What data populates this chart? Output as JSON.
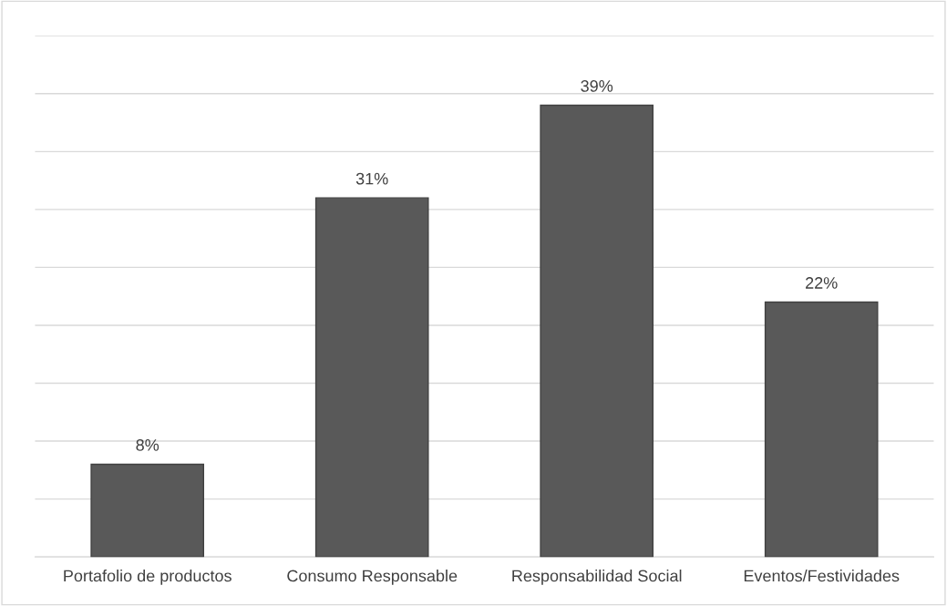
{
  "chart_data": {
    "type": "bar",
    "categories": [
      "Portafolio de productos",
      "Consumo Responsable",
      "Responsabilidad Social",
      "Eventos/Festividades"
    ],
    "values": [
      8,
      31,
      39,
      22
    ],
    "value_labels": [
      "8%",
      "31%",
      "39%",
      "22%"
    ],
    "color": "#595959",
    "ylim": [
      0,
      45
    ],
    "yticks": [
      {
        "value": 0,
        "label": null
      },
      {
        "value": 5,
        "label": null
      },
      {
        "value": 10,
        "label": null
      },
      {
        "value": 15,
        "label": null
      },
      {
        "value": 20,
        "label": null
      },
      {
        "value": 25,
        "label": null
      },
      {
        "value": 30,
        "label": null
      },
      {
        "value": 35,
        "label": null
      },
      {
        "value": 40,
        "label": null
      },
      {
        "value": 45,
        "label": null
      }
    ],
    "grid": "y",
    "tick_labels": "x",
    "legend": false
  }
}
